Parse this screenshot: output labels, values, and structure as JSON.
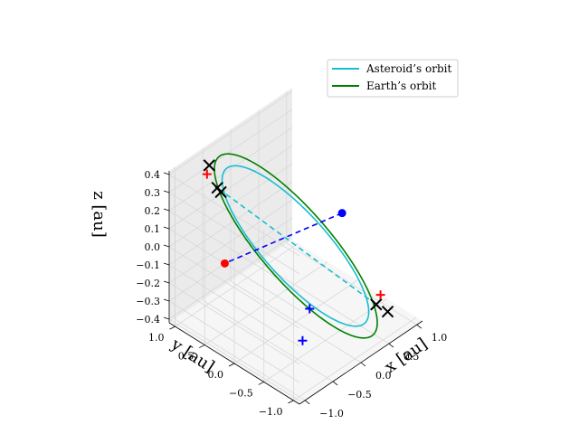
{
  "chart_data": {
    "type": "line3d",
    "title": "",
    "xlabel": "x [au]",
    "ylabel": "y [au]",
    "zlabel": "z [au]",
    "xlim": [
      -1.1,
      1.1
    ],
    "ylim": [
      -1.1,
      1.1
    ],
    "zlim": [
      -0.42,
      0.42
    ],
    "xticks": [
      "−1.0",
      "−0.5",
      "0.0",
      "0.5",
      "1.0"
    ],
    "yticks": [
      "−1.0",
      "−0.5",
      "0.0",
      "0.5",
      "1.0"
    ],
    "zticks": [
      "−0.4",
      "−0.3",
      "−0.2",
      "−0.1",
      "0.0",
      "0.1",
      "0.2",
      "0.3",
      "0.4"
    ],
    "grid": true,
    "legend": {
      "placement": "upper-right",
      "entries": [
        {
          "label": "Asteroid’s orbit",
          "color": "#17becf"
        },
        {
          "label": "Earth’s orbit",
          "color": "#008000"
        }
      ]
    },
    "series": [
      {
        "name": "Asteroid’s orbit",
        "kind": "ellipse",
        "color": "#17becf",
        "center": [
          0.12,
          0.12,
          -0.05
        ],
        "radius": 0.9,
        "inclination_z": 0.36
      },
      {
        "name": "Earth’s orbit",
        "kind": "ellipse",
        "color": "#008000",
        "center": [
          0.0,
          0.0,
          0.0
        ],
        "radius": 1.0,
        "inclination_z": 0.42
      }
    ],
    "segments": [
      {
        "from": [
          0.78,
          -0.62,
          -0.36
        ],
        "to": [
          -0.62,
          0.74,
          0.3
        ],
        "color": "#17becf",
        "style": "dashed"
      },
      {
        "from": [
          0.7,
          -0.12,
          0.06
        ],
        "to": [
          -0.9,
          0.35,
          0.02
        ],
        "color": "#0000ff",
        "style": "dashed"
      }
    ],
    "markers": [
      {
        "type": "circle",
        "color": "#ff0000",
        "coords": [
          -0.9,
          0.35,
          0.02
        ]
      },
      {
        "type": "circle",
        "color": "#0000ff",
        "coords": [
          0.7,
          -0.12,
          0.06
        ]
      },
      {
        "type": "x",
        "color": "#000000",
        "coords": [
          -0.68,
          0.82,
          0.42
        ]
      },
      {
        "type": "x",
        "color": "#000000",
        "coords": [
          -0.62,
          0.74,
          0.3
        ]
      },
      {
        "type": "x",
        "color": "#000000",
        "coords": [
          -0.6,
          0.7,
          0.28
        ]
      },
      {
        "type": "x",
        "color": "#000000",
        "coords": [
          0.78,
          -0.62,
          -0.36
        ]
      },
      {
        "type": "x",
        "color": "#000000",
        "coords": [
          0.88,
          -0.72,
          -0.4
        ]
      },
      {
        "type": "plus",
        "color": "#ff0000",
        "coords": [
          -0.72,
          0.82,
          0.38
        ]
      },
      {
        "type": "plus",
        "color": "#ff0000",
        "coords": [
          0.9,
          -0.58,
          -0.34
        ]
      },
      {
        "type": "plus",
        "color": "#0000ff",
        "coords": [
          -0.05,
          -0.28,
          -0.28
        ]
      },
      {
        "type": "plus",
        "color": "#0000ff",
        "coords": [
          -0.25,
          -0.35,
          -0.4
        ]
      }
    ]
  }
}
